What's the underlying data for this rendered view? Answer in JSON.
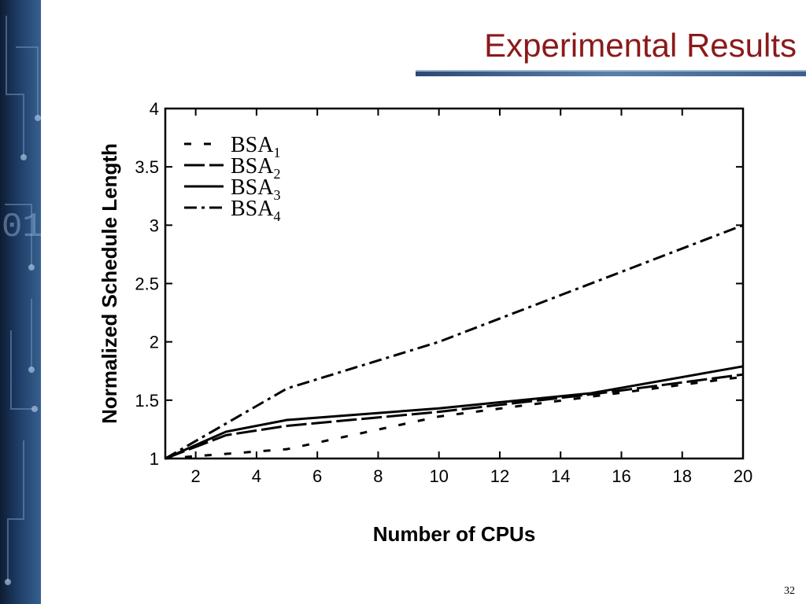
{
  "slide": {
    "title": "Experimental Results",
    "page_number": "32"
  },
  "colors": {
    "title": "#8b1a1a",
    "sidebar": "#1e3d66",
    "lines": "#000000"
  },
  "chart_data": {
    "type": "line",
    "title": "",
    "xlabel": "Number of CPUs",
    "ylabel": "Normalized Schedule Length",
    "xlim": [
      1,
      20
    ],
    "ylim": [
      1,
      4
    ],
    "xticks": [
      2,
      4,
      6,
      8,
      10,
      12,
      14,
      16,
      18,
      20
    ],
    "yticks": [
      1,
      1.5,
      2,
      2.5,
      3,
      3.5,
      4
    ],
    "grid": false,
    "legend_position": "top-left",
    "series": [
      {
        "name": "BSA",
        "subscript": "1",
        "style": "dashed-short",
        "x": [
          1,
          5,
          10,
          15,
          20
        ],
        "y": [
          1.0,
          1.08,
          1.36,
          1.53,
          1.7
        ]
      },
      {
        "name": "BSA",
        "subscript": "2",
        "style": "dashed-long",
        "x": [
          1,
          3,
          5,
          10,
          15,
          20
        ],
        "y": [
          1.0,
          1.2,
          1.28,
          1.4,
          1.55,
          1.72
        ]
      },
      {
        "name": "BSA",
        "subscript": "3",
        "style": "solid",
        "x": [
          1,
          3,
          5,
          10,
          15,
          20
        ],
        "y": [
          1.0,
          1.23,
          1.33,
          1.43,
          1.56,
          1.79
        ]
      },
      {
        "name": "BSA",
        "subscript": "4",
        "style": "dash-dot",
        "x": [
          1,
          5,
          10,
          15,
          20
        ],
        "y": [
          1.0,
          1.6,
          2.0,
          2.5,
          3.0
        ]
      }
    ]
  }
}
